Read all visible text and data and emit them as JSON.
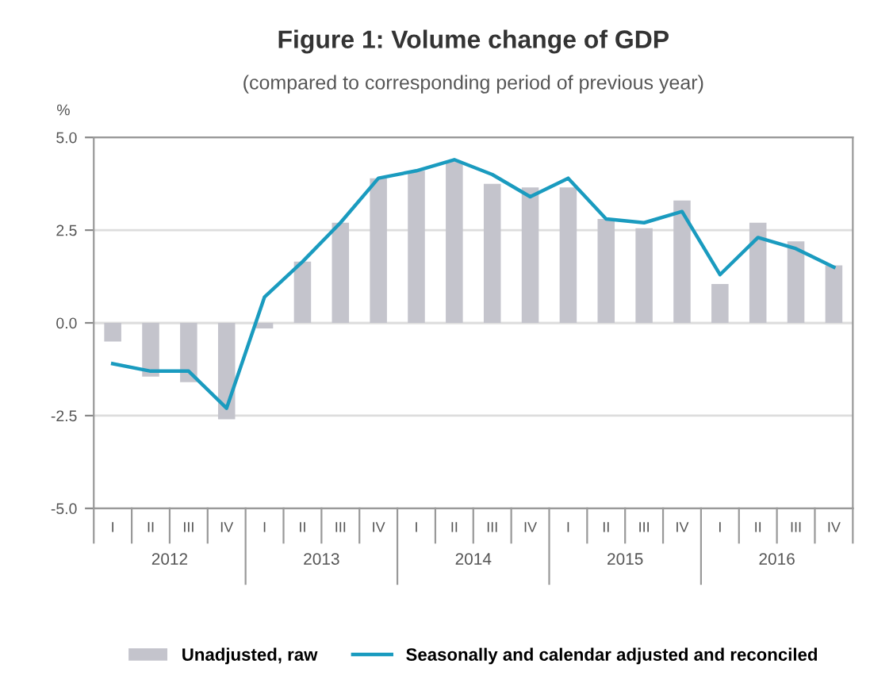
{
  "chart_data": {
    "type": "bar",
    "title": "Figure 1: Volume change of GDP",
    "subtitle": "(compared to corresponding period of previous year)",
    "ylabel": "%",
    "categories": [
      "I",
      "II",
      "III",
      "IV",
      "I",
      "II",
      "III",
      "IV",
      "I",
      "II",
      "III",
      "IV",
      "I",
      "II",
      "III",
      "IV",
      "I",
      "II",
      "III",
      "IV"
    ],
    "series": [
      {
        "name": "Unadjusted, raw",
        "color": "#c4c4cc",
        "values": [
          -0.5,
          -1.45,
          -1.6,
          -2.6,
          -0.15,
          1.65,
          2.7,
          3.9,
          4.1,
          4.35,
          3.75,
          3.65,
          3.65,
          2.8,
          2.55,
          3.3,
          1.05,
          2.7,
          2.2,
          1.55
        ]
      },
      {
        "name": "Seasonally and calendar adjusted and reconciled",
        "type": "line",
        "color": "#1a9bbf",
        "values": [
          -1.1,
          -1.3,
          -1.3,
          -2.3,
          0.7,
          1.65,
          2.7,
          3.9,
          4.1,
          4.4,
          4.0,
          3.4,
          3.9,
          2.8,
          2.7,
          3.0,
          1.3,
          2.3,
          2.0,
          1.5
        ]
      }
    ],
    "annotations": [
      "2012",
      "2013",
      "2014",
      "2015",
      "2016"
    ],
    "ylim": [
      -5.0,
      5.0
    ],
    "yticks": [
      {
        "value": -5.0,
        "label": "-5.0"
      },
      {
        "value": -2.5,
        "label": "-2.5"
      },
      {
        "value": 0.0,
        "label": "0.0"
      },
      {
        "value": 2.5,
        "label": "2.5"
      },
      {
        "value": 5.0,
        "label": "5.0"
      }
    ],
    "grid": "y",
    "legend": "bottom",
    "marker": "none",
    "line_style": "solid"
  }
}
